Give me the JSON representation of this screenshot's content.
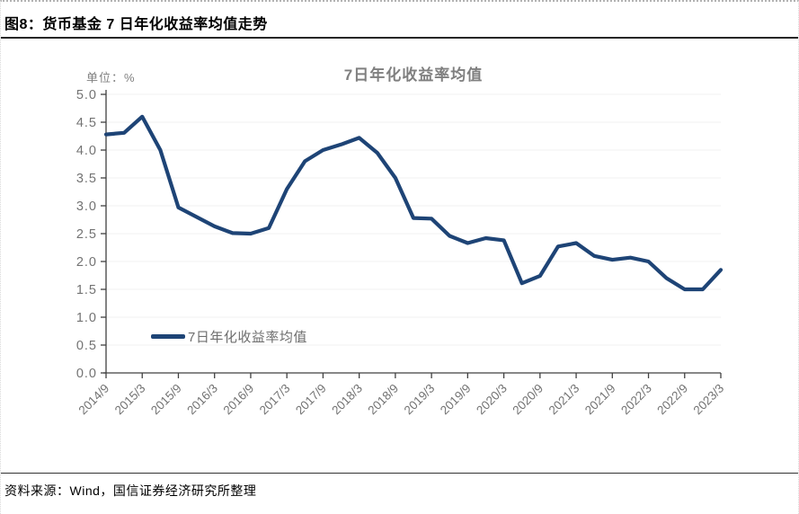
{
  "figure": {
    "title": "图8：货币基金 7 日年化收益率均值走势",
    "source": "资料来源：Wind，国信证券经济研究所整理"
  },
  "chart_data": {
    "type": "line",
    "title": "7日年化收益率均值",
    "unit_label": "单位：%",
    "legend": "7日年化收益率均值",
    "legend_position": "inside-bottom-left",
    "grid": true,
    "ylim": [
      0.0,
      5.0
    ],
    "y_tick_labels": [
      "5.0",
      "4.5",
      "4.0",
      "3.5",
      "3.0",
      "2.5",
      "2.0",
      "1.5",
      "1.0",
      "0.5",
      "0.0"
    ],
    "x_tick_labels": [
      "2014/9",
      "2015/3",
      "2015/9",
      "2016/3",
      "2016/9",
      "2017/3",
      "2017/9",
      "2018/3",
      "2018/9",
      "2019/3",
      "2019/9",
      "2020/3",
      "2020/9",
      "2021/3",
      "2021/9",
      "2022/3",
      "2022/9",
      "2023/3"
    ],
    "x": [
      "2014/9",
      "2014/12",
      "2015/3",
      "2015/6",
      "2015/9",
      "2015/12",
      "2016/3",
      "2016/6",
      "2016/9",
      "2016/12",
      "2017/3",
      "2017/6",
      "2017/9",
      "2017/12",
      "2018/3",
      "2018/6",
      "2018/9",
      "2018/12",
      "2019/3",
      "2019/6",
      "2019/9",
      "2019/12",
      "2020/3",
      "2020/6",
      "2020/9",
      "2020/12",
      "2021/3",
      "2021/6",
      "2021/9",
      "2021/12",
      "2022/3",
      "2022/6",
      "2022/9",
      "2022/12",
      "2023/3"
    ],
    "series": [
      {
        "name": "7日年化收益率均值",
        "values": [
          4.28,
          4.31,
          4.6,
          4.0,
          2.97,
          2.8,
          2.63,
          2.51,
          2.5,
          2.6,
          3.3,
          3.8,
          4.0,
          4.1,
          4.22,
          3.95,
          3.5,
          2.78,
          2.77,
          2.46,
          2.33,
          2.42,
          2.38,
          1.61,
          1.74,
          2.27,
          2.33,
          2.1,
          2.03,
          2.07,
          2.0,
          1.7,
          1.5,
          1.5,
          1.85
        ]
      }
    ],
    "colors": {
      "line": "#1e4476",
      "axis": "#404040",
      "grid": "#f2f2f2",
      "labels": "#737373",
      "chart_title_text": "#7f7f7f",
      "figure_title_text": "#000000"
    }
  }
}
